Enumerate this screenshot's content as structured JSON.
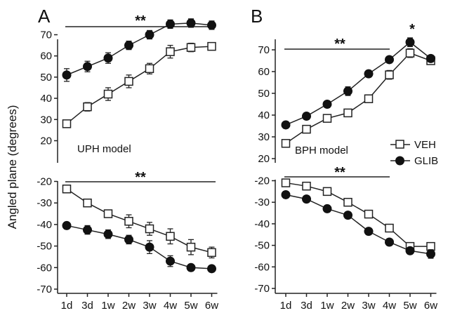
{
  "figure": {
    "ylabel": "Angled plane (degrees)",
    "x_ticks": [
      "1d",
      "3d",
      "1w",
      "2w",
      "3w",
      "4w",
      "5w",
      "6w"
    ],
    "legend": [
      {
        "name": "VEH",
        "marker": "open-square"
      },
      {
        "name": "GLIB",
        "marker": "filled-circle"
      }
    ],
    "colors": {
      "line": "#222222",
      "open_fill": "#ffffff",
      "filled": "#111111"
    }
  },
  "chart_data": [
    {
      "type": "line",
      "panel": "A",
      "part": "upper",
      "annotation": "UPH model",
      "significance": "**",
      "x": [
        "1d",
        "3d",
        "1w",
        "2w",
        "3w",
        "4w",
        "5w",
        "6w"
      ],
      "ylim": [
        20,
        75
      ],
      "yticks": [
        20,
        30,
        40,
        50,
        60,
        70
      ],
      "series": [
        {
          "name": "VEH",
          "values": [
            28,
            36,
            42,
            48,
            54,
            62,
            64,
            64.5
          ],
          "err": [
            1.5,
            2,
            3,
            3,
            2.5,
            3,
            2,
            1.5
          ]
        },
        {
          "name": "GLIB",
          "values": [
            51,
            55,
            59,
            65,
            70,
            75,
            75.5,
            74.5
          ],
          "err": [
            3,
            2.5,
            2.5,
            2,
            2,
            2,
            2,
            2
          ]
        }
      ]
    },
    {
      "type": "line",
      "panel": "A",
      "part": "lower",
      "significance": "**",
      "x": [
        "1d",
        "3d",
        "1w",
        "2w",
        "3w",
        "4w",
        "5w",
        "6w"
      ],
      "ylim": [
        -70,
        -20
      ],
      "yticks": [
        -70,
        -60,
        -50,
        -40,
        -30,
        -20
      ],
      "series": [
        {
          "name": "VEH",
          "values": [
            -23.5,
            -30,
            -35,
            -38.5,
            -42,
            -45.5,
            -50.5,
            -53
          ],
          "err": [
            1.5,
            1.5,
            1.5,
            3,
            3,
            3.5,
            3.5,
            2.5
          ]
        },
        {
          "name": "GLIB",
          "values": [
            -40.5,
            -42.5,
            -44.5,
            -47,
            -50.5,
            -57,
            -60,
            -60.5
          ],
          "err": [
            1.5,
            2,
            2,
            2,
            3,
            2.5,
            1.5,
            1.5
          ]
        }
      ]
    },
    {
      "type": "line",
      "panel": "B",
      "part": "upper",
      "annotation": "BPH model",
      "significance": "**",
      "significance_point": {
        "x": "5w",
        "label": "*"
      },
      "x": [
        "1d",
        "3d",
        "1w",
        "2w",
        "3w",
        "4w",
        "5w",
        "6w"
      ],
      "ylim": [
        20,
        75
      ],
      "yticks": [
        20,
        30,
        40,
        50,
        60,
        70
      ],
      "series": [
        {
          "name": "VEH",
          "values": [
            27,
            33.5,
            38.5,
            41,
            47.5,
            58.5,
            68.5,
            65
          ],
          "err": [
            1.5,
            1.5,
            1.5,
            1.5,
            1.5,
            2,
            2,
            1.5
          ]
        },
        {
          "name": "GLIB",
          "values": [
            35.5,
            39.5,
            45,
            51,
            59,
            65.5,
            73.5,
            66
          ],
          "err": [
            1.5,
            1.5,
            1.5,
            2,
            1.5,
            1.5,
            2,
            1.5
          ]
        }
      ]
    },
    {
      "type": "line",
      "panel": "B",
      "part": "lower",
      "significance": "**",
      "x": [
        "1d",
        "3d",
        "1w",
        "2w",
        "3w",
        "4w",
        "5w",
        "6w"
      ],
      "ylim": [
        -70,
        -20
      ],
      "yticks": [
        -70,
        -60,
        -50,
        -40,
        -30,
        -20
      ],
      "series": [
        {
          "name": "VEH",
          "values": [
            -21,
            -22.5,
            -25,
            -30,
            -35.5,
            -42,
            -50.5,
            -50.5
          ],
          "err": [
            1.5,
            1.5,
            1.5,
            1.5,
            1.5,
            1.5,
            1.5,
            1.5
          ]
        },
        {
          "name": "GLIB",
          "values": [
            -26.5,
            -28.5,
            -33,
            -36,
            -43.5,
            -48.5,
            -52.5,
            -54
          ],
          "err": [
            1.5,
            1.5,
            1.5,
            1.5,
            1.5,
            1.5,
            1.5,
            2
          ]
        }
      ]
    }
  ]
}
